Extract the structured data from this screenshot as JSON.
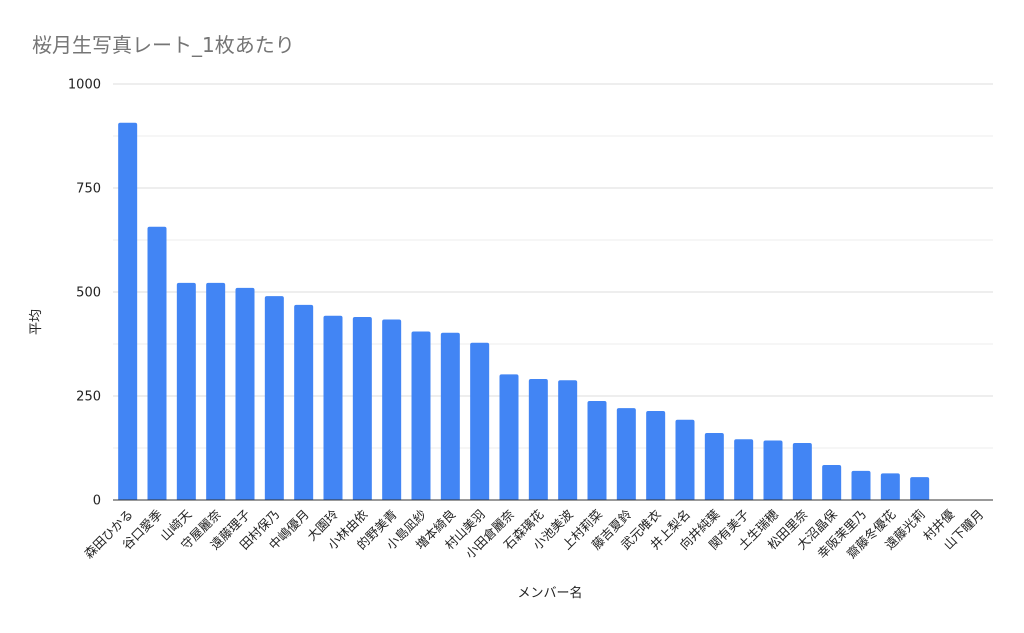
{
  "chart_data": {
    "type": "bar",
    "title": "桜月生写真レート_1枚あたり",
    "xlabel": "メンバー名",
    "ylabel": "平均",
    "ylim": [
      0,
      1000
    ],
    "yticks": [
      0,
      250,
      500,
      750,
      1000
    ],
    "grid": true,
    "bar_color": "#4285f4",
    "categories": [
      "森田ひかる",
      "谷口愛季",
      "山﨑天",
      "守屋麗奈",
      "遠藤理子",
      "田村保乃",
      "中嶋優月",
      "大園玲",
      "小林由依",
      "的野美青",
      "小島凪紗",
      "増本綺良",
      "村山美羽",
      "小田倉麗奈",
      "石森璃花",
      "小池美波",
      "上村莉菜",
      "藤吉夏鈴",
      "武元唯衣",
      "井上梨名",
      "向井純葉",
      "関有美子",
      "土生瑞穂",
      "松田里奈",
      "大沼晶保",
      "幸阪茉里乃",
      "齋藤冬優花",
      "遠藤光莉",
      "村井優",
      "山下瞳月"
    ],
    "values": [
      907,
      657,
      522,
      522,
      510,
      490,
      469,
      443,
      440,
      434,
      405,
      402,
      378,
      302,
      291,
      288,
      238,
      221,
      214,
      193,
      161,
      146,
      143,
      137,
      84,
      70,
      64,
      55,
      0,
      0
    ]
  }
}
